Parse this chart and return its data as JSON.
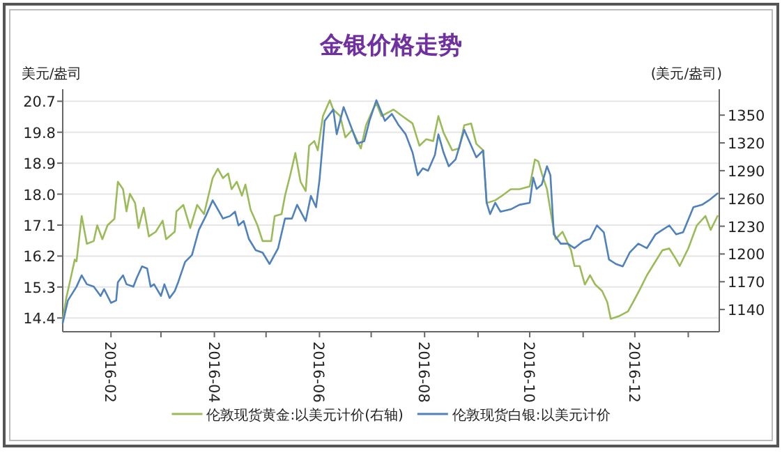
{
  "chart_data": {
    "type": "line",
    "title": "金银价格走势",
    "ylabel": "美元/盎司",
    "y2label": "(美元/盎司)",
    "xlim": [
      "2016-01-04",
      "2017-01-19"
    ],
    "xticks": [
      "2016-02",
      {
        "value": "2016-03",
        "label": null
      },
      "2016-04",
      {
        "value": "2016-05",
        "label": null
      },
      "2016-06",
      {
        "value": "2016-07",
        "label": null
      },
      "2016-08",
      {
        "value": "2016-09",
        "label": null
      },
      "2016-10",
      {
        "value": "2016-11",
        "label": null
      },
      "2016-12",
      {
        "value": "2017-01",
        "label": null
      }
    ],
    "ylim": [
      14.0,
      21.05
    ],
    "yticks": [
      14.4,
      15.3,
      16.2,
      17.1,
      {
        "value": 18,
        "label": "18.0"
      },
      18.9,
      19.8,
      20.7
    ],
    "y2lim": [
      1116,
      1378
    ],
    "y2ticks": [
      1140,
      1170,
      1200,
      1230,
      1260,
      1290,
      1320,
      1350
    ],
    "grid": "y",
    "legend": "bottom",
    "series": [
      {
        "name": "伦敦现货黄金:以美元计价(右轴)",
        "color": "#9bbb59",
        "axis": "y2",
        "x": [
          "2016-01-04",
          "2016-01-06",
          "2016-01-09",
          "2016-01-11",
          "2016-01-12",
          "2016-01-15",
          "2016-01-18",
          "2016-01-22",
          "2016-01-24",
          "2016-01-27",
          "2016-01-30",
          "2016-02-03",
          "2016-02-05",
          "2016-02-08",
          "2016-02-10",
          "2016-02-12",
          "2016-02-15",
          "2016-02-17",
          "2016-02-20",
          "2016-02-23",
          "2016-02-27",
          "2016-03-02",
          "2016-03-04",
          "2016-03-09",
          "2016-03-10",
          "2016-03-14",
          "2016-03-18",
          "2016-03-22",
          "2016-03-26",
          "2016-03-31",
          "2016-04-03",
          "2016-04-06",
          "2016-04-09",
          "2016-04-11",
          "2016-04-14",
          "2016-04-17",
          "2016-04-19",
          "2016-04-22",
          "2016-04-26",
          "2016-04-29",
          "2016-05-04",
          "2016-05-06",
          "2016-05-10",
          "2016-05-12",
          "2016-05-15",
          "2016-05-18",
          "2016-05-21",
          "2016-05-24",
          "2016-05-26",
          "2016-05-29",
          "2016-05-31",
          "2016-06-03",
          "2016-06-07",
          "2016-06-09",
          "2016-06-13",
          "2016-06-16",
          "2016-06-20",
          "2016-06-25",
          "2016-06-28",
          "2016-07-02",
          "2016-07-04",
          "2016-07-07",
          "2016-07-14",
          "2016-07-19",
          "2016-07-25",
          "2016-07-29",
          "2016-08-02",
          "2016-08-06",
          "2016-08-09",
          "2016-08-12",
          "2016-08-17",
          "2016-08-21",
          "2016-08-24",
          "2016-08-28",
          "2016-08-31",
          "2016-09-04",
          "2016-09-06",
          "2016-09-11",
          "2016-09-15",
          "2016-09-20",
          "2016-09-25",
          "2016-10-01",
          "2016-10-04",
          "2016-10-06",
          "2016-10-08",
          "2016-10-11",
          "2016-10-14",
          "2016-10-16",
          "2016-10-20",
          "2016-10-25",
          "2016-10-27",
          "2016-10-30",
          "2016-11-02",
          "2016-11-05",
          "2016-11-08",
          "2016-11-12",
          "2016-11-15",
          "2016-11-17",
          "2016-11-22",
          "2016-11-27",
          "2016-11-30",
          "2016-12-04",
          "2016-12-08",
          "2016-12-13",
          "2016-12-17",
          "2016-12-21",
          "2016-12-25",
          "2016-12-27",
          "2017-01-01",
          "2017-01-06",
          "2017-01-11",
          "2017-01-14",
          "2017-01-18"
        ],
        "values": [
          1128,
          1152,
          1177,
          1194,
          1192,
          1241,
          1211,
          1214,
          1231,
          1216,
          1231,
          1238,
          1278,
          1270,
          1246,
          1265,
          1255,
          1228,
          1250,
          1219,
          1224,
          1236,
          1216,
          1224,
          1246,
          1253,
          1228,
          1253,
          1243,
          1282,
          1292,
          1282,
          1287,
          1270,
          1278,
          1263,
          1275,
          1248,
          1231,
          1214,
          1214,
          1241,
          1243,
          1263,
          1285,
          1309,
          1278,
          1268,
          1317,
          1322,
          1312,
          1349,
          1366,
          1356,
          1349,
          1326,
          1334,
          1314,
          1339,
          1356,
          1363,
          1349,
          1356,
          1349,
          1341,
          1317,
          1324,
          1322,
          1349,
          1331,
          1312,
          1314,
          1339,
          1341,
          1319,
          1312,
          1255,
          1258,
          1263,
          1270,
          1270,
          1273,
          1302,
          1300,
          1287,
          1270,
          1236,
          1216,
          1224,
          1204,
          1187,
          1187,
          1167,
          1177,
          1167,
          1160,
          1148,
          1130,
          1133,
          1138,
          1148,
          1162,
          1177,
          1192,
          1204,
          1206,
          1194,
          1187,
          1206,
          1231,
          1241,
          1226,
          1241
        ]
      },
      {
        "name": "伦敦现货白银:以美元计价",
        "color": "#4f81bd",
        "axis": "y",
        "x": [
          "2016-01-04",
          "2016-01-07",
          "2016-01-12",
          "2016-01-15",
          "2016-01-18",
          "2016-01-22",
          "2016-01-26",
          "2016-01-28",
          "2016-02-01",
          "2016-02-04",
          "2016-02-05",
          "2016-02-08",
          "2016-02-10",
          "2016-02-14",
          "2016-02-16",
          "2016-02-19",
          "2016-02-22",
          "2016-02-24",
          "2016-02-26",
          "2016-03-01",
          "2016-03-03",
          "2016-03-06",
          "2016-03-09",
          "2016-03-11",
          "2016-03-15",
          "2016-03-19",
          "2016-03-23",
          "2016-03-27",
          "2016-03-31",
          "2016-04-03",
          "2016-04-06",
          "2016-04-10",
          "2016-04-13",
          "2016-04-15",
          "2016-04-18",
          "2016-04-21",
          "2016-04-25",
          "2016-04-29",
          "2016-05-03",
          "2016-05-08",
          "2016-05-12",
          "2016-05-16",
          "2016-05-19",
          "2016-05-24",
          "2016-05-27",
          "2016-05-30",
          "2016-06-01",
          "2016-06-04",
          "2016-06-07",
          "2016-06-09",
          "2016-06-11",
          "2016-06-15",
          "2016-06-19",
          "2016-06-23",
          "2016-06-27",
          "2016-06-30",
          "2016-07-04",
          "2016-07-09",
          "2016-07-13",
          "2016-07-17",
          "2016-07-21",
          "2016-07-25",
          "2016-07-28",
          "2016-07-31",
          "2016-08-03",
          "2016-08-07",
          "2016-08-09",
          "2016-08-12",
          "2016-08-15",
          "2016-08-19",
          "2016-08-24",
          "2016-08-31",
          "2016-09-04",
          "2016-09-06",
          "2016-09-08",
          "2016-09-11",
          "2016-09-14",
          "2016-09-20",
          "2016-09-25",
          "2016-10-01",
          "2016-10-03",
          "2016-10-05",
          "2016-10-08",
          "2016-10-11",
          "2016-10-13",
          "2016-10-15",
          "2016-10-19",
          "2016-10-23",
          "2016-10-27",
          "2016-11-01",
          "2016-11-05",
          "2016-11-09",
          "2016-11-13",
          "2016-11-16",
          "2016-11-20",
          "2016-11-24",
          "2016-11-28",
          "2016-12-03",
          "2016-12-08",
          "2016-12-13",
          "2016-12-17",
          "2016-12-21",
          "2016-12-25",
          "2016-12-29",
          "2017-01-04",
          "2017-01-09",
          "2017-01-13",
          "2017-01-18"
        ],
        "values": [
          14.25,
          14.91,
          15.31,
          15.64,
          15.38,
          15.31,
          15.04,
          15.24,
          14.84,
          14.91,
          15.44,
          15.64,
          15.38,
          15.31,
          15.57,
          15.9,
          15.84,
          15.31,
          15.38,
          15.04,
          15.38,
          14.98,
          15.18,
          15.44,
          16.03,
          16.23,
          16.96,
          17.36,
          17.82,
          17.56,
          17.29,
          17.36,
          17.49,
          17.09,
          17.22,
          16.7,
          16.37,
          16.3,
          15.97,
          16.43,
          17.29,
          17.29,
          17.69,
          17.22,
          17.95,
          17.62,
          18.41,
          20.13,
          20.33,
          20.46,
          19.74,
          20.53,
          20.0,
          19.47,
          19.54,
          20.13,
          20.73,
          20.13,
          20.33,
          20.0,
          19.74,
          19.21,
          18.55,
          18.75,
          18.68,
          19.14,
          19.74,
          19.21,
          18.81,
          19.01,
          19.87,
          19.07,
          19.27,
          17.75,
          17.42,
          17.75,
          17.49,
          17.56,
          17.69,
          17.75,
          18.48,
          18.15,
          18.28,
          18.81,
          18.55,
          16.83,
          16.56,
          16.56,
          16.43,
          16.63,
          16.7,
          17.09,
          16.89,
          16.1,
          15.97,
          15.9,
          16.3,
          16.56,
          16.43,
          16.83,
          16.96,
          17.09,
          16.83,
          16.89,
          17.62,
          17.69,
          17.82,
          18.02
        ]
      }
    ]
  }
}
